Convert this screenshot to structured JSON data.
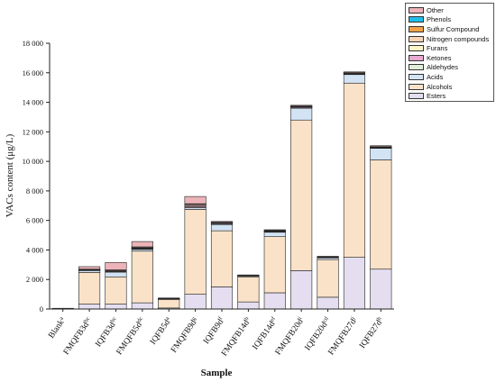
{
  "chart_data": {
    "type": "bar",
    "stacked": true,
    "xlabel": "Sample",
    "ylabel": "VACs content (μg/L)",
    "ylim": [
      0,
      18000
    ],
    "yticks": [
      "0",
      "2 000",
      "4 000",
      "6 000",
      "8 000",
      "10 000",
      "12 000",
      "14 000",
      "16 000",
      "18 000"
    ],
    "ytick_values": [
      0,
      2000,
      4000,
      6000,
      8000,
      10000,
      12000,
      14000,
      16000,
      18000
    ],
    "grid": false,
    "legend_position": "top-right",
    "categories": [
      {
        "name": "Blank",
        "sup": "a"
      },
      {
        "name": "FMQFB3d",
        "sup": "bc"
      },
      {
        "name": "IQFB3d",
        "sup": "bc"
      },
      {
        "name": "FMQFB5d",
        "sup": "dc"
      },
      {
        "name": "IQFB5d",
        "sup": "a"
      },
      {
        "name": "FMQFB9d",
        "sup": "g"
      },
      {
        "name": "IQFB9d",
        "sup": "f"
      },
      {
        "name": "FMQFB14d",
        "sup": "b"
      },
      {
        "name": "IQFB14d",
        "sup": "ef"
      },
      {
        "name": "FMQFB20d",
        "sup": "i"
      },
      {
        "name": "IQFB20d",
        "sup": "cd"
      },
      {
        "name": "FMQFB27d",
        "sup": "j"
      },
      {
        "name": "IQFB27d",
        "sup": "h"
      }
    ],
    "series": [
      {
        "name": "Esters",
        "color": "#e4def0",
        "values": [
          20,
          330,
          330,
          420,
          70,
          1000,
          1500,
          480,
          1100,
          2600,
          800,
          3500,
          2700
        ]
      },
      {
        "name": "Alcohols",
        "color": "#fae2c8",
        "values": [
          20,
          2150,
          1850,
          3500,
          580,
          5750,
          3800,
          1700,
          3800,
          10200,
          2550,
          11800,
          7400
        ]
      },
      {
        "name": "Acids",
        "color": "#d2e3f4",
        "values": [
          10,
          130,
          320,
          120,
          40,
          110,
          420,
          60,
          300,
          800,
          120,
          580,
          780
        ]
      },
      {
        "name": "Aldehydes",
        "color": "#e0edd8",
        "values": [
          0,
          20,
          40,
          30,
          10,
          50,
          50,
          20,
          30,
          30,
          20,
          30,
          30
        ]
      },
      {
        "name": "Ketones",
        "color": "#e8aad0",
        "values": [
          0,
          30,
          60,
          60,
          10,
          100,
          60,
          20,
          50,
          60,
          30,
          50,
          40
        ]
      },
      {
        "name": "Furans",
        "color": "#fbf6c8",
        "values": [
          0,
          10,
          20,
          10,
          0,
          20,
          20,
          10,
          20,
          20,
          10,
          20,
          20
        ]
      },
      {
        "name": "Nitrogen compounds",
        "color": "#f8d4b8",
        "values": [
          0,
          20,
          20,
          60,
          10,
          80,
          20,
          10,
          20,
          30,
          10,
          20,
          20
        ]
      },
      {
        "name": "Sulfur Compound",
        "color": "#f2a24a",
        "values": [
          0,
          10,
          10,
          10,
          0,
          20,
          10,
          0,
          10,
          10,
          10,
          10,
          10
        ]
      },
      {
        "name": "Phenols",
        "color": "#22bde8",
        "values": [
          0,
          0,
          0,
          0,
          0,
          0,
          0,
          0,
          0,
          0,
          0,
          0,
          0
        ]
      },
      {
        "name": "Other",
        "color": "#ecb4b8",
        "values": [
          0,
          170,
          500,
          360,
          30,
          490,
          50,
          10,
          40,
          50,
          20,
          50,
          60
        ]
      }
    ]
  }
}
